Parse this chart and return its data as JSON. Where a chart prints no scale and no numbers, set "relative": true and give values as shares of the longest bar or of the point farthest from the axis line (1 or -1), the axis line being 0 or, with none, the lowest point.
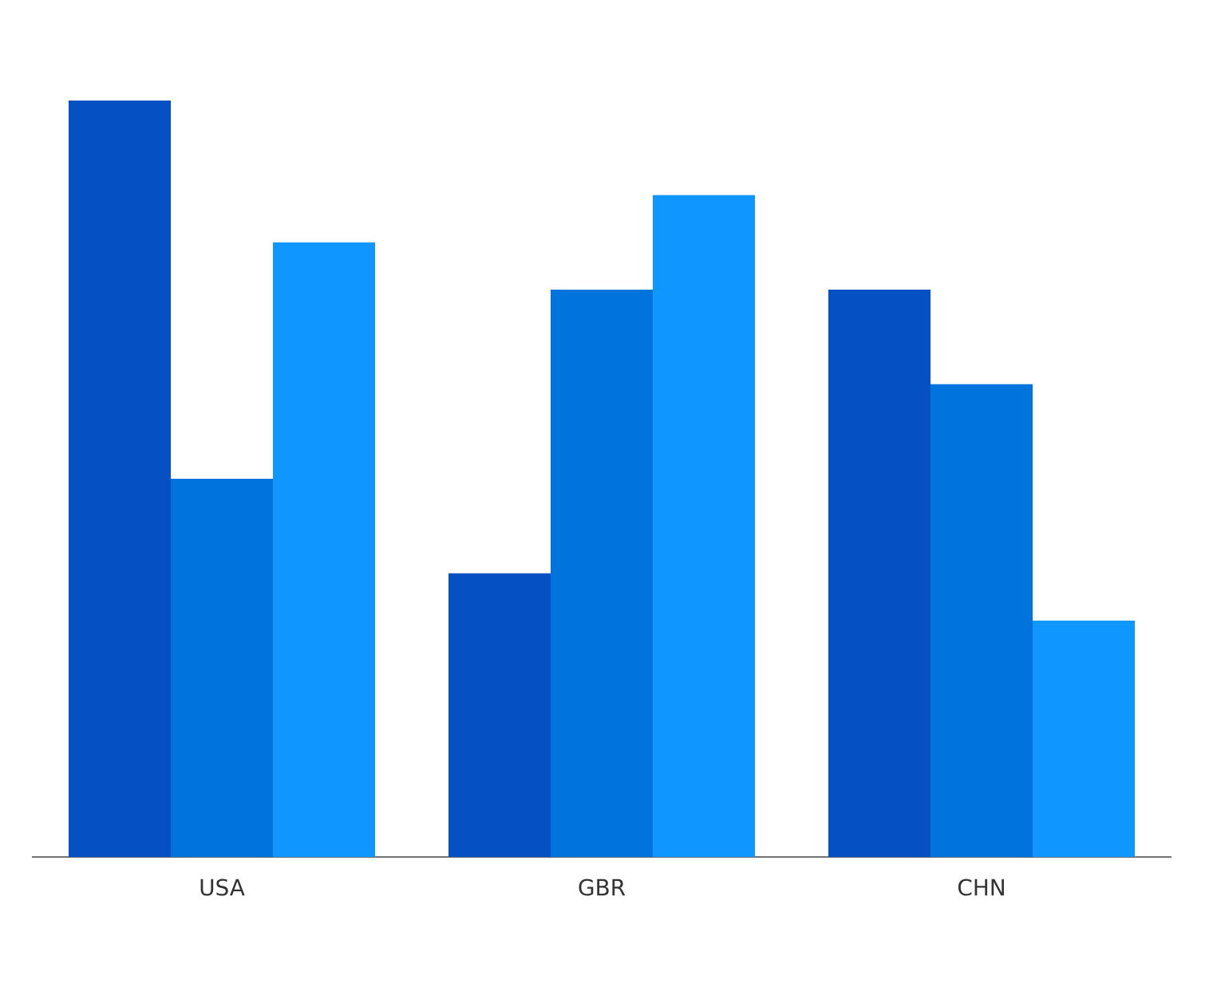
{
  "chart_data": {
    "type": "bar",
    "relative": true,
    "categories": [
      "USA",
      "GBR",
      "CHN"
    ],
    "series": [
      {
        "color": "#0550c3",
        "values": [
          1,
          0.375,
          0.75
        ]
      },
      {
        "color": "#0073dc",
        "values": [
          0.5,
          0.75,
          0.625
        ]
      },
      {
        "color": "#0f96ff",
        "values": [
          0.8125,
          0.875,
          0.3125
        ]
      }
    ]
  }
}
